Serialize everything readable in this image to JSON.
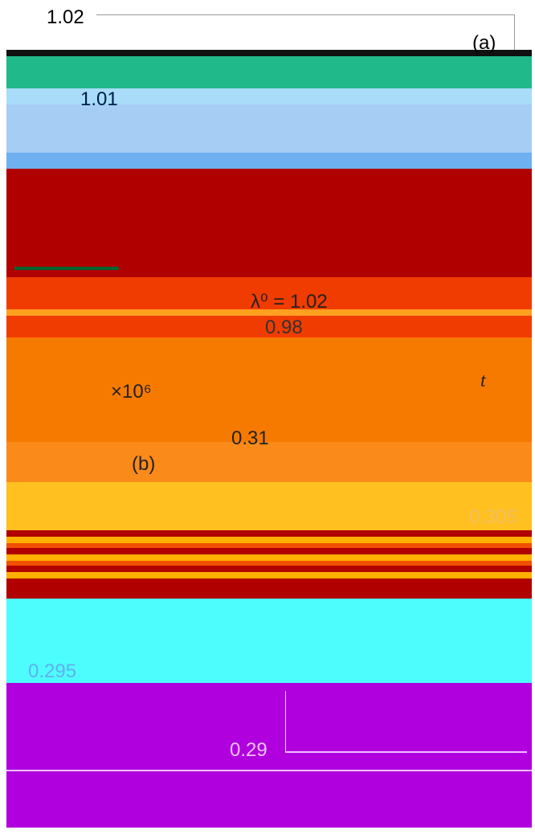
{
  "panel_a": {
    "label": "(a)",
    "y_top": "1.02",
    "y_mid": "1.01",
    "annotation": "λ⁰ = 1.02",
    "annotation_low": "0.98",
    "x_scale": "×10⁶",
    "x_label": "t"
  },
  "panel_b": {
    "label": "(b)",
    "y_top": "0.31",
    "y_mid": "0.305",
    "y_low": "0.295",
    "y_bottom": "0.29"
  }
}
